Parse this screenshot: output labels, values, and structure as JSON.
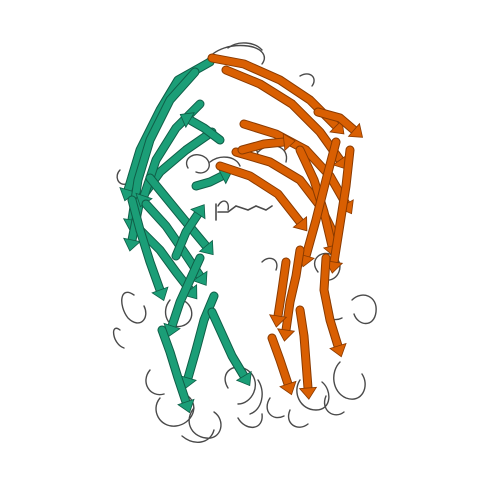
{
  "image": {
    "kind": "protein-ribbon-render",
    "background": "#ffffff",
    "colors": {
      "chain_a": "#1b9e77",
      "chain_b": "#d95f02",
      "coil": "#4a4a4a"
    },
    "chains": [
      {
        "name": "chain-a",
        "color_key": "chain_a",
        "side": "left"
      },
      {
        "name": "chain-b",
        "color_key": "chain_b",
        "side": "right"
      }
    ]
  }
}
